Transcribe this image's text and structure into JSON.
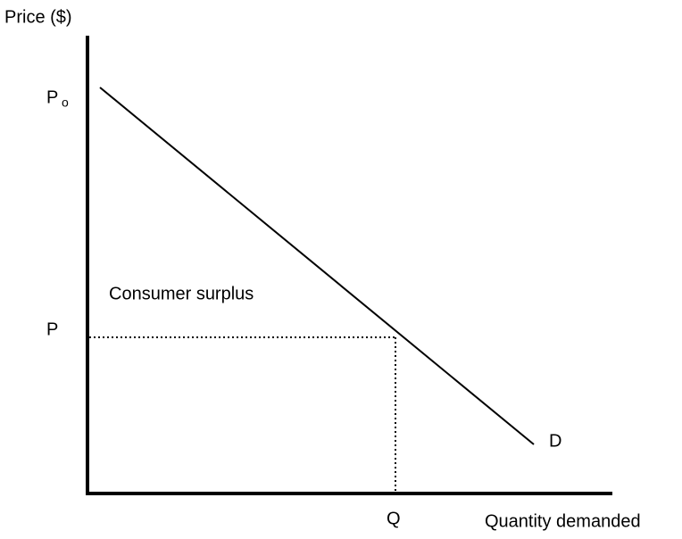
{
  "axis_labels": {
    "y": "Price ($)",
    "x": "Quantity demanded"
  },
  "price_labels": {
    "initial": {
      "main": "P",
      "subscript": "o"
    },
    "market": "P"
  },
  "quantity_label": "Q",
  "curve_label": "D",
  "region_label": "Consumer surplus"
}
